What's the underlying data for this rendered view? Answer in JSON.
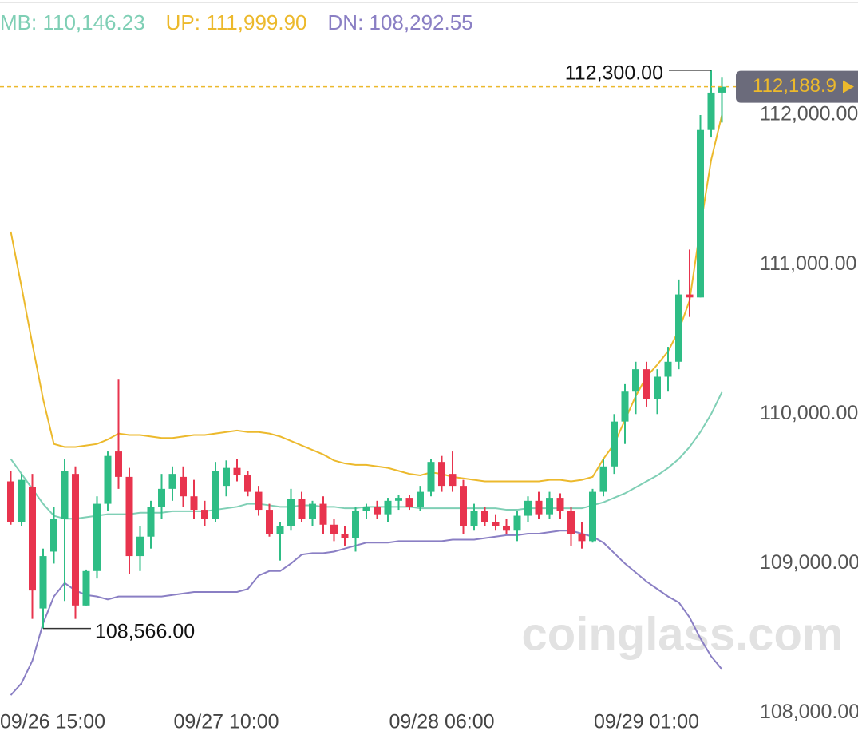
{
  "chart_data": {
    "type": "candlestick",
    "categories": [
      null,
      "09/26 15:00",
      null,
      null,
      null,
      null,
      null,
      null,
      null,
      null,
      null,
      null,
      null,
      null,
      null,
      null,
      null,
      null,
      null,
      null,
      "09/27 10:00",
      null,
      null,
      null,
      null,
      null,
      null,
      null,
      null,
      null,
      null,
      null,
      null,
      null,
      null,
      null,
      null,
      null,
      null,
      null,
      "09/28 06:00",
      null,
      null,
      null,
      null,
      null,
      null,
      null,
      null,
      null,
      null,
      null,
      null,
      null,
      null,
      null,
      null,
      null,
      null,
      "09/29 01:00",
      null,
      null,
      null,
      null,
      null,
      null,
      null
    ],
    "open": [
      109550,
      109280,
      109510,
      108700,
      109080,
      109300,
      109600,
      108720,
      108950,
      109400,
      109750,
      109580,
      109050,
      109180,
      109380,
      109500,
      109580,
      109450,
      109360,
      109300,
      109520,
      109640,
      109590,
      109480,
      109360,
      109200,
      109250,
      109430,
      109300,
      109400,
      109260,
      109200,
      109170,
      109350,
      109380,
      109330,
      109420,
      109440,
      109380,
      109480,
      109680,
      109600,
      109520,
      109250,
      109350,
      109280,
      109250,
      109220,
      109320,
      109420,
      109330,
      109440,
      109350,
      109200,
      109150,
      109480,
      109650,
      109950,
      110150,
      110300,
      110100,
      110250,
      110350,
      110800,
      110780,
      111900,
      112150
    ],
    "high": [
      109620,
      109600,
      109600,
      109100,
      109380,
      109700,
      109650,
      108960,
      109450,
      109750,
      110230,
      109640,
      109250,
      109420,
      109600,
      109650,
      109650,
      109560,
      109420,
      109680,
      109690,
      109700,
      109620,
      109520,
      109400,
      109280,
      109500,
      109480,
      109420,
      109450,
      109300,
      109250,
      109380,
      109400,
      109420,
      109440,
      109460,
      109460,
      109520,
      109700,
      109720,
      109750,
      109560,
      109400,
      109380,
      109330,
      109300,
      109350,
      109450,
      109480,
      109480,
      109470,
      109380,
      109280,
      109500,
      109700,
      110000,
      110200,
      110350,
      110350,
      110300,
      110450,
      110900,
      111100,
      112000,
      112300,
      112250
    ],
    "low": [
      109260,
      109250,
      108630,
      108566,
      109000,
      108750,
      108630,
      108720,
      108900,
      109350,
      109500,
      108930,
      108950,
      109100,
      109300,
      109420,
      109380,
      109300,
      109250,
      109280,
      109450,
      109550,
      109450,
      109320,
      109180,
      109020,
      109220,
      109280,
      109250,
      109200,
      109150,
      109120,
      109080,
      109300,
      109300,
      109280,
      109360,
      109360,
      109350,
      109450,
      109480,
      109480,
      109200,
      109220,
      109250,
      109220,
      109200,
      109150,
      109280,
      109300,
      109300,
      109300,
      109120,
      109100,
      109140,
      109450,
      109600,
      109800,
      110000,
      110050,
      110000,
      110150,
      110300,
      110650,
      110780,
      111850,
      111950
    ],
    "close": [
      109280,
      109560,
      108820,
      109050,
      109300,
      109620,
      108720,
      108950,
      109400,
      109720,
      109580,
      109050,
      109180,
      109380,
      109500,
      109600,
      109450,
      109360,
      109300,
      109620,
      109640,
      109590,
      109480,
      109360,
      109200,
      109250,
      109430,
      109300,
      109400,
      109260,
      109200,
      109170,
      109350,
      109380,
      109330,
      109420,
      109440,
      109380,
      109480,
      109680,
      109520,
      109520,
      109250,
      109350,
      109280,
      109250,
      109220,
      109320,
      109420,
      109330,
      109440,
      109350,
      109200,
      109150,
      109480,
      109650,
      109950,
      110150,
      110300,
      110100,
      110250,
      110350,
      110800,
      110780,
      111900,
      112150,
      112188.9
    ],
    "up_color": "#2ebd85",
    "down_color": "#e8344e",
    "series": [
      {
        "name": "MB:",
        "last_label": "110,146.23",
        "color": "#7fcfb5",
        "values": [
          109700,
          109600,
          109500,
          109400,
          109320,
          109300,
          109300,
          109310,
          109320,
          109330,
          109330,
          109330,
          109340,
          109340,
          109340,
          109350,
          109350,
          109350,
          109350,
          109360,
          109370,
          109380,
          109400,
          109400,
          109390,
          109380,
          109380,
          109390,
          109390,
          109380,
          109380,
          109370,
          109370,
          109380,
          109380,
          109380,
          109380,
          109380,
          109370,
          109370,
          109370,
          109370,
          109370,
          109370,
          109370,
          109370,
          109360,
          109360,
          109370,
          109370,
          109370,
          109370,
          109370,
          109370,
          109390,
          109410,
          109440,
          109470,
          109510,
          109550,
          109590,
          109640,
          109700,
          109780,
          109880,
          110000,
          110146.23
        ]
      },
      {
        "name": "UP:",
        "last_label": "111,999.90",
        "color": "#ecb92c",
        "values": [
          111220,
          110850,
          110470,
          110100,
          109800,
          109780,
          109780,
          109790,
          109800,
          109830,
          109870,
          109860,
          109860,
          109850,
          109840,
          109840,
          109850,
          109860,
          109860,
          109870,
          109880,
          109890,
          109880,
          109880,
          109870,
          109850,
          109820,
          109790,
          109760,
          109730,
          109690,
          109670,
          109660,
          109660,
          109650,
          109640,
          109620,
          109600,
          109590,
          109610,
          109600,
          109580,
          109570,
          109560,
          109550,
          109550,
          109550,
          109550,
          109550,
          109550,
          109560,
          109560,
          109550,
          109560,
          109580,
          109700,
          109800,
          109960,
          110120,
          110250,
          110330,
          110420,
          110560,
          110760,
          111250,
          111700,
          111999.9
        ]
      },
      {
        "name": "DN:",
        "last_label": "108,292.55",
        "color": "#8a7fc4",
        "values": [
          108120,
          108200,
          108350,
          108600,
          108780,
          108870,
          108820,
          108790,
          108780,
          108760,
          108780,
          108780,
          108780,
          108780,
          108780,
          108790,
          108800,
          108810,
          108810,
          108810,
          108810,
          108810,
          108830,
          108920,
          108950,
          108950,
          109000,
          109060,
          109070,
          109070,
          109080,
          109100,
          109120,
          109140,
          109140,
          109140,
          109150,
          109150,
          109150,
          109150,
          109150,
          109160,
          109160,
          109160,
          109170,
          109180,
          109190,
          109190,
          109200,
          109200,
          109210,
          109220,
          109220,
          109200,
          109180,
          109140,
          109070,
          109000,
          108940,
          108880,
          108830,
          108780,
          108740,
          108640,
          108500,
          108380,
          108292.55
        ]
      }
    ],
    "ylim": [
      107800,
      112700
    ],
    "yticks": [
      {
        "value": 108000,
        "label": "108,000.00"
      },
      {
        "value": 109000,
        "label": "109,000.00"
      },
      {
        "value": 110000,
        "label": "110,000.00"
      },
      {
        "value": 111000,
        "label": "111,000.00"
      },
      {
        "value": 112000,
        "label": "112,000.00"
      }
    ],
    "last_price": {
      "value": 112188.9,
      "label": "112,188.9",
      "color": "#ecb92c"
    },
    "annotations": [
      {
        "value": 112300,
        "label": "112,300.00",
        "of": "high"
      },
      {
        "value": 108566,
        "label": "108,566.00",
        "of": "low"
      }
    ],
    "watermark": "coinglass.com"
  }
}
